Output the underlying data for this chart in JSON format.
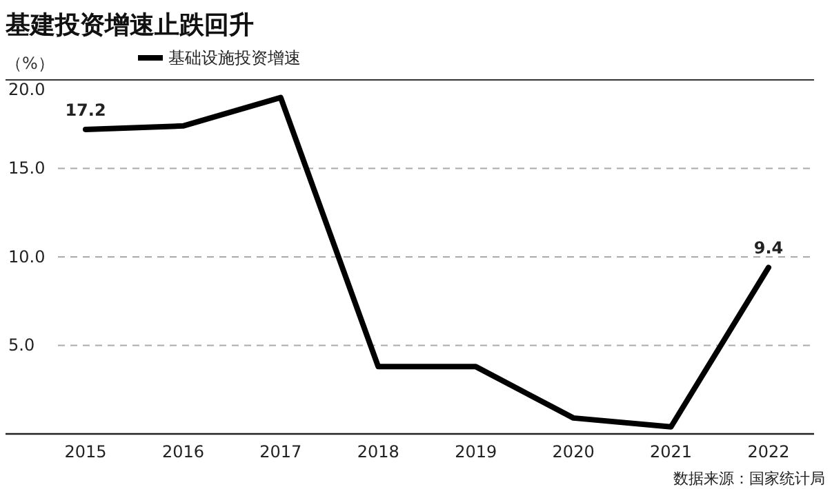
{
  "chart_data": {
    "type": "line",
    "title": "基建投资增速止跌回升",
    "ylabel": "（%）",
    "categories": [
      "2015",
      "2016",
      "2017",
      "2018",
      "2019",
      "2020",
      "2021",
      "2022"
    ],
    "series": [
      {
        "name": "基础设施投资增速",
        "color": "#000000",
        "values": [
          17.2,
          17.4,
          19.0,
          3.8,
          3.8,
          0.9,
          0.4,
          9.4
        ],
        "value_labels": [
          "17.2",
          null,
          null,
          null,
          null,
          null,
          null,
          "9.4"
        ]
      }
    ],
    "ylim": [
      0,
      20
    ],
    "yticks": [
      {
        "value": 5,
        "label": "5.0"
      },
      {
        "value": 10,
        "label": "10.0"
      },
      {
        "value": 15,
        "label": "15.0"
      },
      {
        "value": 20,
        "label": "20.0"
      }
    ],
    "grid": "y",
    "legend": "top left",
    "marker": "none",
    "line_style": "solid",
    "annotations": [
      "数据来源：国家统计局"
    ]
  }
}
